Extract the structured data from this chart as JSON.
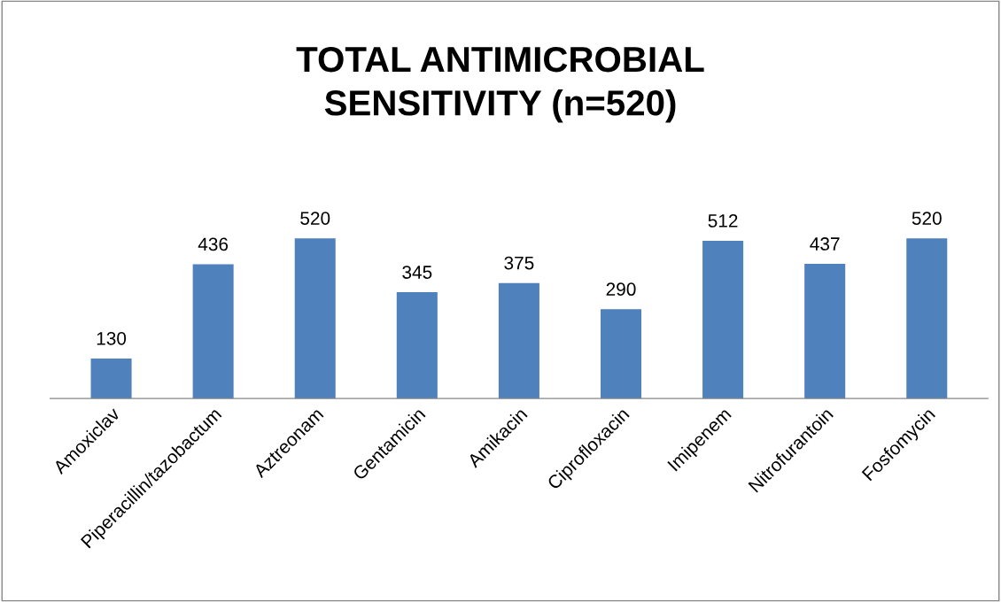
{
  "chart_data": {
    "type": "bar",
    "title": "TOTAL ANTIMICROBIAL\nSENSITIVITY (n=520)",
    "categories": [
      "Amoxiclav",
      "Piperacillin/tazobactum",
      "Aztreonam",
      "Gentamicin",
      "Amikacin",
      "Ciprofloxacin",
      "Imipenem",
      "Nitrofurantoin",
      "Fosfomycin"
    ],
    "values": [
      130,
      436,
      520,
      345,
      375,
      290,
      512,
      437,
      520
    ],
    "color": "#4f81bd",
    "data_labels": true,
    "grid": false,
    "legend": false,
    "tick_labels": "x"
  }
}
